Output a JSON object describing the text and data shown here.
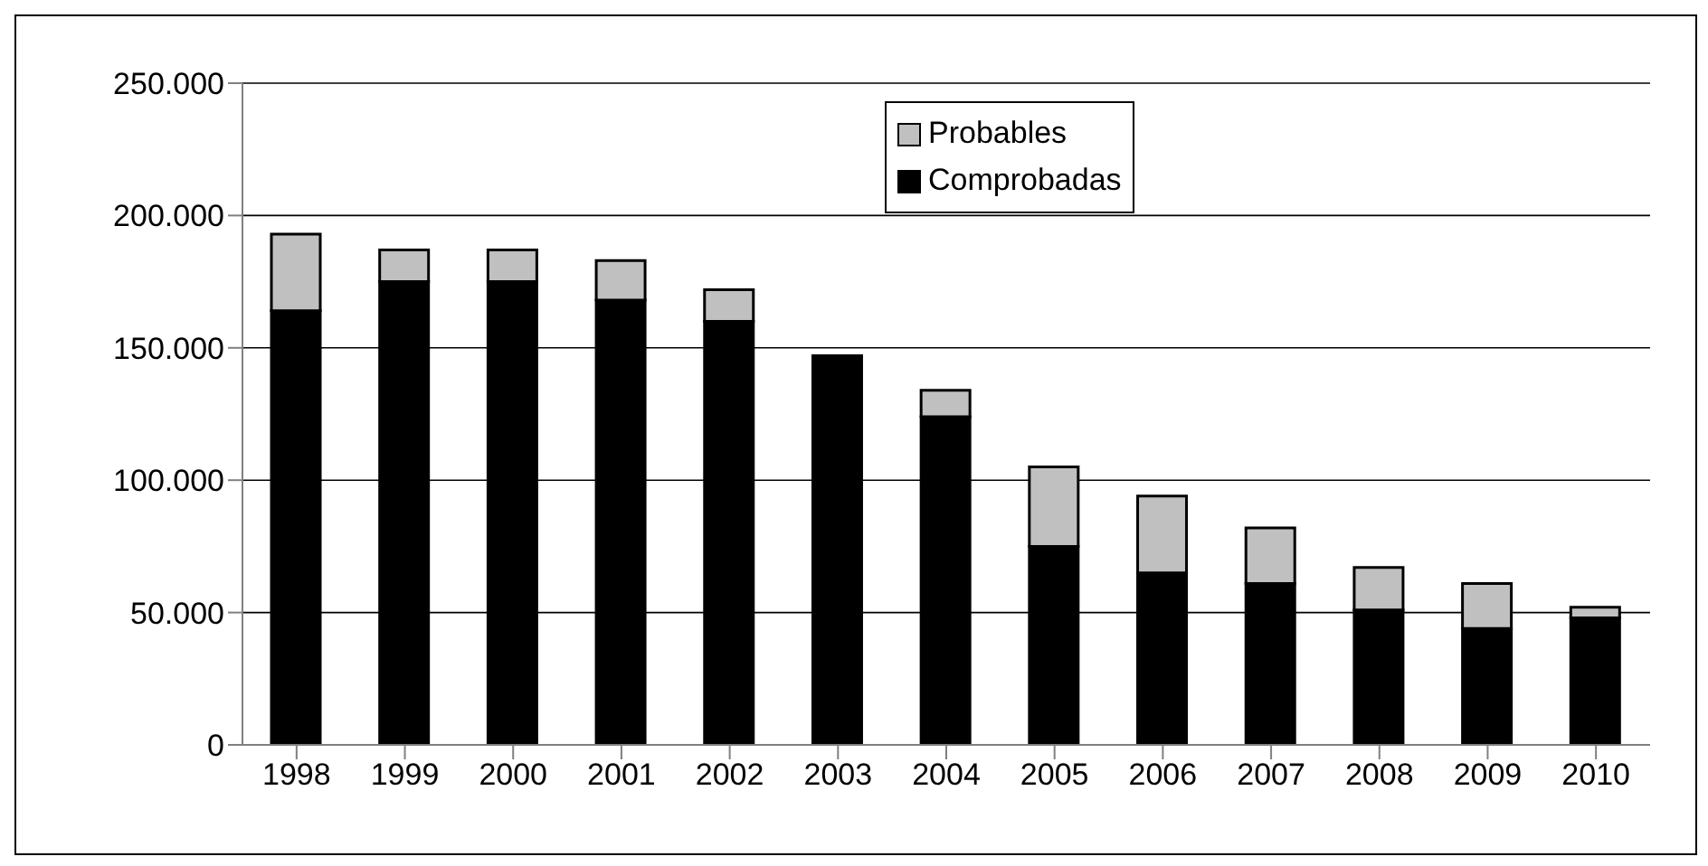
{
  "chart_data": {
    "type": "bar",
    "stacked": true,
    "categories": [
      "1998",
      "1999",
      "2000",
      "2001",
      "2002",
      "2003",
      "2004",
      "2005",
      "2006",
      "2007",
      "2008",
      "2009",
      "2010"
    ],
    "series": [
      {
        "name": "Comprobadas",
        "color": "#000000",
        "values": [
          164000,
          175000,
          175000,
          168000,
          160000,
          147000,
          124000,
          75000,
          65000,
          61000,
          51000,
          44000,
          48000
        ]
      },
      {
        "name": "Probables",
        "color": "#c0c0c0",
        "values": [
          29000,
          12000,
          12000,
          15000,
          12000,
          0,
          10000,
          30000,
          29000,
          21000,
          16000,
          17000,
          4000
        ]
      }
    ],
    "ylim": [
      0,
      250000
    ],
    "yticks": [
      {
        "value": 0,
        "label": "0"
      },
      {
        "value": 50000,
        "label": "50.000"
      },
      {
        "value": 100000,
        "label": "100.000"
      },
      {
        "value": 150000,
        "label": "150.000"
      },
      {
        "value": 200000,
        "label": "200.000"
      },
      {
        "value": 250000,
        "label": "250.000"
      }
    ],
    "grid": "y",
    "legend": "top"
  }
}
